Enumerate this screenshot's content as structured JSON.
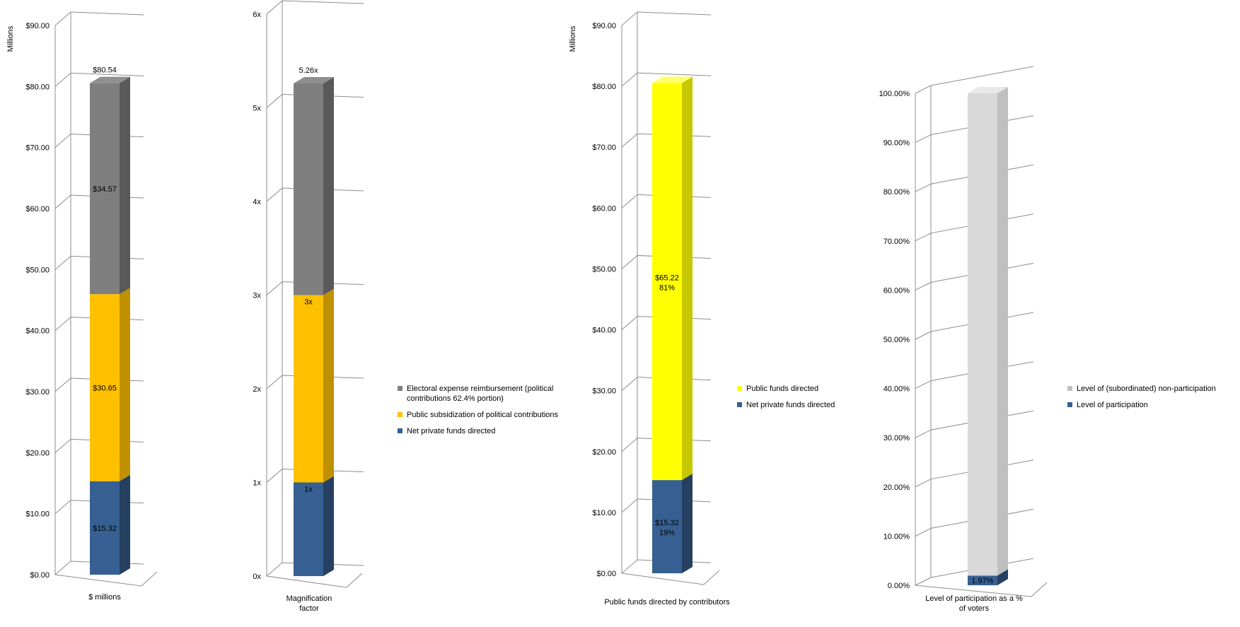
{
  "colors": {
    "gray_front": "#7f7f7f",
    "gray_side": "#595959",
    "gray_top": "#8f8f8f",
    "orange_front": "#ffc000",
    "orange_side": "#bf9000",
    "orange_top": "#ffd24d",
    "blue_front": "#376092",
    "blue_side": "#254061",
    "blue_top": "#4a74a8",
    "yellow_front": "#ffff00",
    "yellow_side": "#c8c800",
    "yellow_top": "#ffff66",
    "lightgray_front": "#d9d9d9",
    "lightgray_side": "#bfbfbf",
    "lightgray_top": "#e8e8e8",
    "grid": "#8c8c8c"
  },
  "chart_data": [
    {
      "type": "bar",
      "stacked": true,
      "categories": [
        "$ millions"
      ],
      "ylabel": "Millions",
      "ylim": [
        0,
        90
      ],
      "yticks": [
        0,
        10,
        20,
        30,
        40,
        50,
        60,
        70,
        80,
        90
      ],
      "ytick_labels": [
        "$0.00",
        "$10.00",
        "$20.00",
        "$30.00",
        "$40.00",
        "$50.00",
        "$60.00",
        "$70.00",
        "$80.00",
        "$90.00"
      ],
      "series": [
        {
          "name": "Net private funds directed",
          "values": [
            15.32
          ],
          "label": "$15.32",
          "color": "blue"
        },
        {
          "name": "Public subsidization of political contributions",
          "values": [
            30.65
          ],
          "label": "$30.65",
          "color": "orange"
        },
        {
          "name": "Electoral expense reimbursement (political contributions 62.4% portion)",
          "values": [
            34.57
          ],
          "label": "$34.57",
          "color": "gray"
        }
      ],
      "total_label": "$80.54"
    },
    {
      "type": "bar",
      "stacked": true,
      "categories": [
        "Magnification factor"
      ],
      "ylim": [
        0,
        6
      ],
      "yticks": [
        0,
        1,
        2,
        3,
        4,
        5,
        6
      ],
      "ytick_labels": [
        "0x",
        "1x",
        "2x",
        "3x",
        "4x",
        "5x",
        "6x"
      ],
      "series": [
        {
          "name": "Net private funds directed",
          "values": [
            1.0
          ],
          "label": "1x",
          "label_pos": "top",
          "color": "blue"
        },
        {
          "name": "Public subsidization of political contributions",
          "values": [
            2.0
          ],
          "label": "3x",
          "label_pos": "top",
          "color": "orange"
        },
        {
          "name": "Electoral expense reimbursement (political contributions 62.4% portion)",
          "values": [
            2.26
          ],
          "label": "",
          "color": "gray"
        }
      ],
      "total_label": "5.26x",
      "legend": [
        "Electoral expense reimbursement (political contributions 62.4% portion)",
        "Public subsidization of political contributions",
        "Net private funds directed"
      ]
    },
    {
      "type": "bar",
      "stacked": true,
      "categories": [
        "Public funds directed by contributors"
      ],
      "ylabel": "Millions",
      "ylim": [
        0,
        90
      ],
      "yticks": [
        0,
        10,
        20,
        30,
        40,
        50,
        60,
        70,
        80,
        90
      ],
      "ytick_labels": [
        "$0.00",
        "$10.00",
        "$20.00",
        "$30.00",
        "$40.00",
        "$50.00",
        "$60.00",
        "$70.00",
        "$80.00",
        "$90.00"
      ],
      "series": [
        {
          "name": "Net private funds directed",
          "values": [
            15.32
          ],
          "label": "$15.32",
          "label2": "19%",
          "color": "blue"
        },
        {
          "name": "Public funds directed",
          "values": [
            65.22
          ],
          "label": "$65.22",
          "label2": "81%",
          "color": "yellow"
        }
      ],
      "legend": [
        "Public funds directed",
        "Net private funds directed"
      ]
    },
    {
      "type": "bar",
      "stacked": true,
      "categories": [
        "Level of participation as a % of voters"
      ],
      "ylim": [
        0,
        100
      ],
      "yticks": [
        0,
        10,
        20,
        30,
        40,
        50,
        60,
        70,
        80,
        90,
        100
      ],
      "ytick_labels": [
        "0.00%",
        "10.00%",
        "20.00%",
        "30.00%",
        "40.00%",
        "50.00%",
        "60.00%",
        "70.00%",
        "80.00%",
        "90.00%",
        "100.00%"
      ],
      "series": [
        {
          "name": "Level of participation",
          "values": [
            1.97
          ],
          "label": "1.97%",
          "color": "blue"
        },
        {
          "name": "Level of (subordinated) non-participation",
          "values": [
            98.03
          ],
          "label": "",
          "color": "lightgray"
        }
      ],
      "legend": [
        "Level of (subordinated) non-participation",
        "Level of participation"
      ]
    }
  ]
}
